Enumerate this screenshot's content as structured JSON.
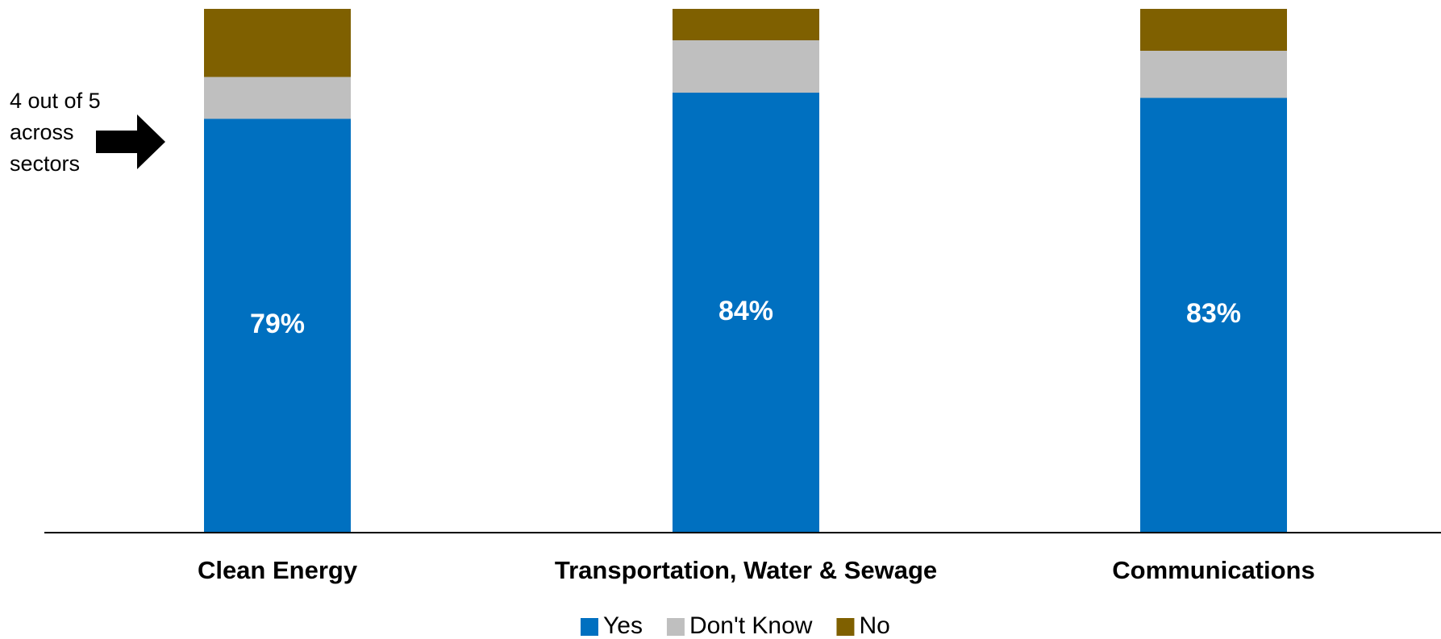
{
  "chart_data": {
    "type": "stacked_bar",
    "categories": [
      "Clean Energy",
      "Transportation, Water & Sewage",
      "Communications"
    ],
    "series": [
      {
        "name": "Yes",
        "color": "#0070c0",
        "values": [
          79,
          84,
          83
        ],
        "value_labels": [
          "79%",
          "84%",
          "83%"
        ]
      },
      {
        "name": "Don't Know",
        "color": "#bfbfbf",
        "values": [
          8,
          10,
          9
        ]
      },
      {
        "name": "No",
        "color": "#7f6000",
        "values": [
          13,
          6,
          8
        ]
      }
    ],
    "ylim": [
      0,
      100
    ],
    "legend": "bottom",
    "annotation": [
      "4 out of 5",
      "across",
      "sectors"
    ]
  }
}
